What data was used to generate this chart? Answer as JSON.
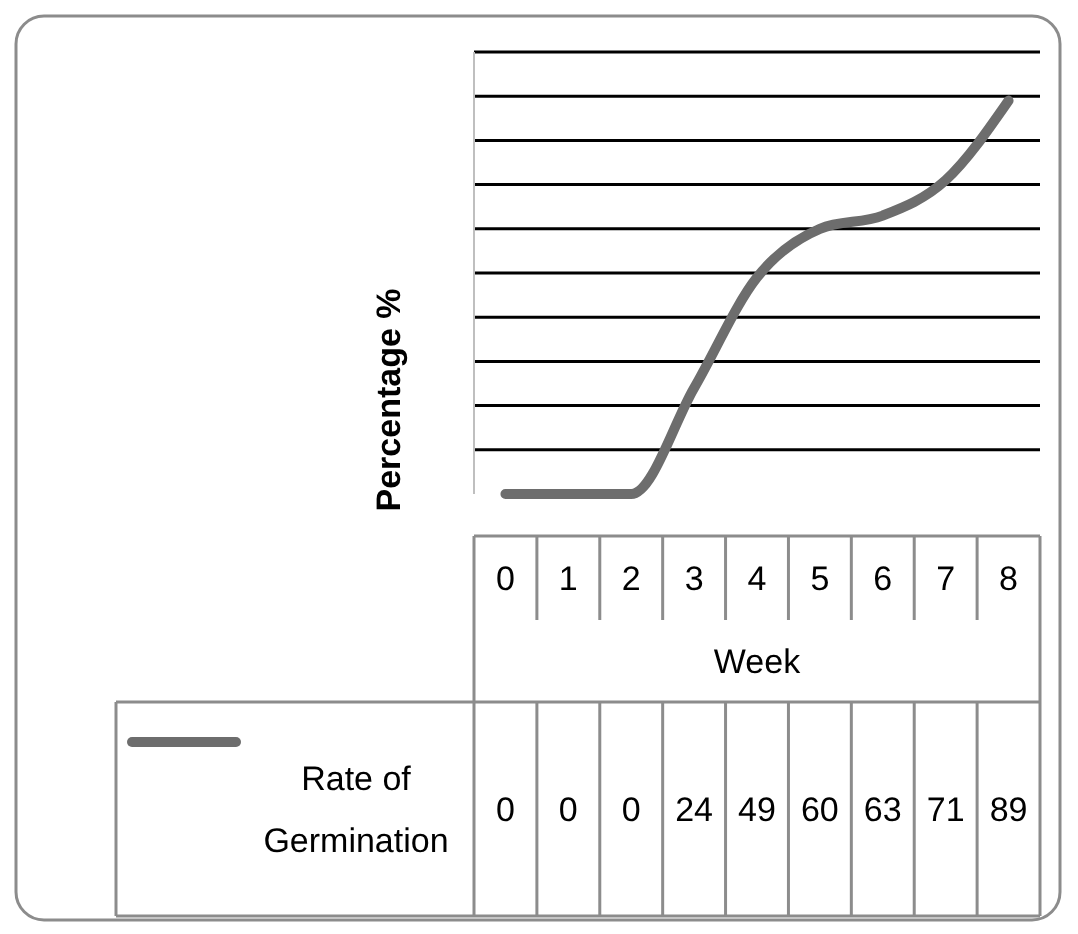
{
  "chart_data": {
    "type": "line",
    "xlabel": "Week",
    "ylabel": "Percentage %",
    "categories": [
      "0",
      "1",
      "2",
      "3",
      "4",
      "5",
      "6",
      "7",
      "8"
    ],
    "series": [
      {
        "name": "Rate of Germination",
        "color": "#6d6d6d",
        "values": [
          0,
          0,
          0,
          24,
          49,
          60,
          63,
          71,
          89
        ]
      }
    ],
    "ylim": [
      0,
      100
    ],
    "yticks": [
      {
        "value": 10,
        "label": null
      },
      {
        "value": 20,
        "label": null
      },
      {
        "value": 30,
        "label": null
      },
      {
        "value": 40,
        "label": null
      },
      {
        "value": 50,
        "label": null
      },
      {
        "value": 60,
        "label": null
      },
      {
        "value": 70,
        "label": null
      },
      {
        "value": 80,
        "label": null
      },
      {
        "value": 90,
        "label": null
      },
      {
        "value": 100,
        "label": null
      }
    ],
    "tick_labels": "x",
    "grid": "y",
    "data_labels": true,
    "legend": "bottom",
    "marker": "none",
    "line_style": "solid"
  }
}
